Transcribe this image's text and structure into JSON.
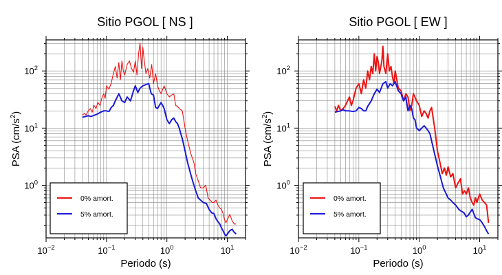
{
  "chart_data": [
    {
      "type": "line",
      "title": "Sitio PGOL [ NS ]",
      "xlabel": "Periodo (s)",
      "ylabel_main": "PSA (cm/s",
      "ylabel_sup": "2",
      "ylabel_close": ")",
      "x_scale": "log",
      "y_scale": "log",
      "xlim": [
        0.01,
        20
      ],
      "ylim": [
        0.12,
        350
      ],
      "grid": true,
      "legend_position": "bottom-left",
      "x_ticks": [
        {
          "base": "10",
          "exp": "−2",
          "value": 0.01
        },
        {
          "base": "10",
          "exp": "−1",
          "value": 0.1
        },
        {
          "base": "10",
          "exp": "0",
          "value": 1
        },
        {
          "base": "10",
          "exp": "1",
          "value": 10
        }
      ],
      "y_ticks": [
        {
          "base": "10",
          "exp": "0",
          "value": 1
        },
        {
          "base": "10",
          "exp": "1",
          "value": 10
        },
        {
          "base": "10",
          "exp": "2",
          "value": 100
        }
      ],
      "series": [
        {
          "name": "0% amort.",
          "color": "#ee1111",
          "stroke": "thin",
          "x": [
            0.04,
            0.043,
            0.046,
            0.05,
            0.054,
            0.058,
            0.062,
            0.067,
            0.072,
            0.078,
            0.084,
            0.09,
            0.095,
            0.1,
            0.11,
            0.12,
            0.13,
            0.14,
            0.15,
            0.16,
            0.17,
            0.18,
            0.19,
            0.2,
            0.22,
            0.24,
            0.26,
            0.28,
            0.3,
            0.32,
            0.34,
            0.36,
            0.38,
            0.4,
            0.42,
            0.45,
            0.48,
            0.52,
            0.56,
            0.6,
            0.65,
            0.7,
            0.75,
            0.8,
            0.9,
            1.0,
            1.1,
            1.2,
            1.3,
            1.4,
            1.5,
            1.6,
            1.8,
            2.0,
            2.2,
            2.5,
            2.8,
            3.0,
            3.3,
            3.6,
            4.0,
            4.4,
            4.8,
            5.2,
            5.6,
            6.0,
            6.5,
            7.0,
            7.5,
            8.0,
            8.5,
            9.0,
            9.5,
            10.0,
            11.0,
            12.0,
            13.0,
            14.0
          ],
          "y": [
            17,
            18,
            17,
            20,
            22,
            19,
            25,
            22,
            28,
            25,
            34,
            40,
            33,
            55,
            48,
            62,
            90,
            120,
            75,
            140,
            70,
            150,
            100,
            85,
            130,
            150,
            110,
            95,
            150,
            85,
            200,
            310,
            110,
            260,
            160,
            90,
            110,
            75,
            130,
            60,
            90,
            55,
            45,
            40,
            55,
            40,
            35,
            38,
            40,
            25,
            24,
            22,
            20,
            10,
            6,
            3.5,
            2.5,
            1.6,
            1.2,
            0.9,
            0.9,
            1.0,
            0.6,
            0.55,
            0.5,
            0.5,
            0.55,
            0.45,
            0.4,
            0.38,
            0.32,
            0.25,
            0.22,
            0.25,
            0.31,
            0.24,
            0.21,
            0.21
          ]
        },
        {
          "name": "5% amort.",
          "color": "#1a1ad9",
          "stroke": "thick",
          "x": [
            0.04,
            0.045,
            0.05,
            0.055,
            0.06,
            0.07,
            0.08,
            0.09,
            0.1,
            0.11,
            0.12,
            0.13,
            0.14,
            0.16,
            0.18,
            0.2,
            0.22,
            0.25,
            0.28,
            0.3,
            0.33,
            0.36,
            0.4,
            0.45,
            0.5,
            0.55,
            0.6,
            0.65,
            0.7,
            0.75,
            0.8,
            0.85,
            0.9,
            1.0,
            1.1,
            1.2,
            1.3,
            1.4,
            1.5,
            1.6,
            1.8,
            2.0,
            2.2,
            2.5,
            2.8,
            3.0,
            3.3,
            3.6,
            4.0,
            4.5,
            5.0,
            5.5,
            6.0,
            6.5,
            7.0,
            7.5,
            8.0,
            8.5,
            9.0,
            9.5,
            10.0,
            11.0,
            12.0,
            13.0,
            14.0
          ],
          "y": [
            15.5,
            16,
            16.5,
            16,
            16.5,
            17.5,
            19,
            20,
            20,
            19.5,
            23,
            25,
            30,
            40,
            30,
            28,
            35,
            30,
            45,
            55,
            42,
            50,
            55,
            58,
            60,
            40,
            38,
            23,
            22,
            25,
            28,
            25,
            22,
            14,
            12,
            14,
            15,
            13,
            12,
            10,
            6.5,
            4.0,
            2.5,
            1.5,
            1.0,
            0.8,
            0.6,
            0.55,
            0.5,
            0.48,
            0.38,
            0.33,
            0.32,
            0.26,
            0.23,
            0.21,
            0.18,
            0.16,
            0.14,
            0.13,
            0.14,
            0.16,
            0.17,
            0.15,
            0.14
          ]
        }
      ]
    },
    {
      "type": "line",
      "title": "Sitio PGOL [ EW ]",
      "xlabel": "Periodo (s)",
      "ylabel_main": "PSA (cm/s",
      "ylabel_sup": "2",
      "ylabel_close": ")",
      "x_scale": "log",
      "y_scale": "log",
      "xlim": [
        0.01,
        20
      ],
      "ylim": [
        0.12,
        350
      ],
      "grid": true,
      "legend_position": "bottom-left",
      "x_ticks": [
        {
          "base": "10",
          "exp": "−2",
          "value": 0.01
        },
        {
          "base": "10",
          "exp": "−1",
          "value": 0.1
        },
        {
          "base": "10",
          "exp": "0",
          "value": 1
        },
        {
          "base": "10",
          "exp": "1",
          "value": 10
        }
      ],
      "y_ticks": [
        {
          "base": "10",
          "exp": "0",
          "value": 1
        },
        {
          "base": "10",
          "exp": "1",
          "value": 10
        },
        {
          "base": "10",
          "exp": "2",
          "value": 100
        }
      ],
      "series": [
        {
          "name": "0% amort.",
          "color": "#ee1111",
          "stroke": "thick",
          "x": [
            0.04,
            0.043,
            0.046,
            0.05,
            0.055,
            0.06,
            0.065,
            0.07,
            0.075,
            0.08,
            0.09,
            0.1,
            0.11,
            0.12,
            0.13,
            0.14,
            0.15,
            0.16,
            0.17,
            0.18,
            0.19,
            0.2,
            0.21,
            0.22,
            0.24,
            0.25,
            0.26,
            0.28,
            0.3,
            0.32,
            0.34,
            0.36,
            0.38,
            0.4,
            0.45,
            0.5,
            0.55,
            0.6,
            0.65,
            0.7,
            0.75,
            0.8,
            0.9,
            1.0,
            1.1,
            1.2,
            1.3,
            1.4,
            1.5,
            1.6,
            1.8,
            2.0,
            2.2,
            2.4,
            2.6,
            2.8,
            3.0,
            3.3,
            3.6,
            4.0,
            4.4,
            4.8,
            5.2,
            5.6,
            6.0,
            6.5,
            7.0,
            7.5,
            8.0,
            8.5,
            9.0,
            10.0,
            11.0,
            12.0,
            13.0,
            14.0
          ],
          "y": [
            24,
            20,
            25,
            20,
            22,
            25,
            30,
            35,
            25,
            30,
            50,
            60,
            40,
            70,
            50,
            100,
            70,
            120,
            90,
            200,
            100,
            180,
            140,
            90,
            150,
            270,
            120,
            90,
            200,
            100,
            120,
            80,
            60,
            100,
            50,
            45,
            30,
            40,
            35,
            20,
            25,
            40,
            30,
            25,
            16,
            20,
            18,
            15,
            20,
            23,
            10,
            4,
            2.5,
            1.6,
            2.0,
            1.5,
            2.1,
            1.4,
            1.6,
            0.9,
            1.1,
            1.3,
            0.7,
            0.8,
            0.7,
            0.9,
            0.6,
            0.5,
            0.45,
            0.6,
            0.5,
            0.7,
            0.55,
            0.5,
            0.45,
            0.22
          ]
        },
        {
          "name": "5% amort.",
          "color": "#1a1ad9",
          "stroke": "thick",
          "x": [
            0.04,
            0.045,
            0.05,
            0.055,
            0.06,
            0.07,
            0.08,
            0.09,
            0.1,
            0.11,
            0.12,
            0.13,
            0.14,
            0.16,
            0.18,
            0.2,
            0.22,
            0.25,
            0.28,
            0.3,
            0.33,
            0.36,
            0.4,
            0.45,
            0.5,
            0.55,
            0.6,
            0.65,
            0.7,
            0.75,
            0.8,
            0.85,
            0.9,
            1.0,
            1.1,
            1.2,
            1.3,
            1.4,
            1.5,
            1.6,
            1.8,
            2.0,
            2.2,
            2.5,
            2.8,
            3.0,
            3.3,
            3.6,
            4.0,
            4.5,
            5.0,
            5.5,
            6.0,
            6.5,
            7.0,
            7.5,
            8.0,
            8.5,
            9.0,
            10.0,
            11.0,
            12.0,
            13.0,
            14.0
          ],
          "y": [
            19,
            19.5,
            20,
            21,
            20,
            20,
            19.5,
            20,
            23,
            22,
            20,
            20,
            24,
            30,
            40,
            48,
            42,
            60,
            65,
            50,
            60,
            55,
            65,
            45,
            40,
            30,
            35,
            20,
            25,
            22,
            15,
            14,
            10,
            9,
            10,
            11,
            10,
            9,
            8,
            6,
            3.5,
            2.2,
            1.5,
            0.9,
            0.7,
            0.6,
            0.55,
            0.5,
            0.45,
            0.38,
            0.35,
            0.33,
            0.28,
            0.3,
            0.34,
            0.38,
            0.32,
            0.27,
            0.26,
            0.25,
            0.22,
            0.19,
            0.16,
            0.14
          ]
        }
      ]
    }
  ]
}
